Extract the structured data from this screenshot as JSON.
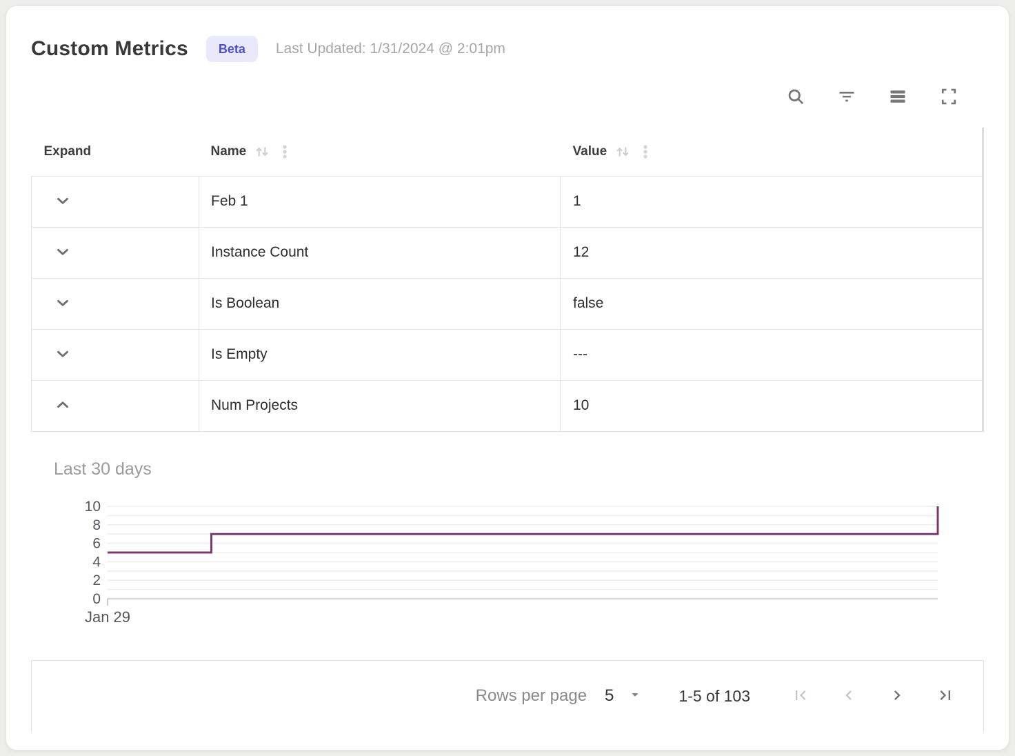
{
  "header": {
    "title": "Custom Metrics",
    "badge": "Beta",
    "last_updated": "Last Updated: 1/31/2024 @ 2:01pm"
  },
  "toolbar": {
    "icons": [
      "search-icon",
      "filter-icon",
      "density-icon",
      "fullscreen-icon"
    ]
  },
  "table": {
    "columns": [
      {
        "label": "Expand",
        "sortable": false
      },
      {
        "label": "Name",
        "sortable": true
      },
      {
        "label": "Value",
        "sortable": true
      }
    ],
    "rows": [
      {
        "name": "Feb 1",
        "value": "1",
        "expanded": false
      },
      {
        "name": "Instance Count",
        "value": "12",
        "expanded": false
      },
      {
        "name": "Is Boolean",
        "value": "false",
        "expanded": false
      },
      {
        "name": "Is Empty",
        "value": "---",
        "expanded": false
      },
      {
        "name": "Num Projects",
        "value": "10",
        "expanded": true
      }
    ]
  },
  "chart_data": {
    "type": "line",
    "step": "after",
    "title": "Last 30 days",
    "xlabel": "",
    "ylabel": "",
    "ylim": [
      0,
      10
    ],
    "y_ticks": [
      0,
      2,
      4,
      6,
      8,
      10
    ],
    "grid": true,
    "x_axis": {
      "start_label": "Jan 29",
      "range_days": 30
    },
    "series": [
      {
        "name": "Num Projects",
        "color": "#7d3a70",
        "points": [
          {
            "day": 0,
            "value": 5
          },
          {
            "day": 3.75,
            "value": 7
          },
          {
            "day": 30,
            "value": 10
          }
        ]
      }
    ]
  },
  "pagination": {
    "rows_per_page_label": "Rows per page",
    "rows_per_page_value": "5",
    "range_label": "1-5 of 103",
    "first_disabled": true,
    "prev_disabled": true,
    "next_disabled": false,
    "last_disabled": false
  },
  "colors": {
    "accent": "#4b50c8",
    "badge_bg": "#e9e9fb",
    "line": "#7d3a70",
    "grid_line": "#efefef",
    "axis_line": "#d9d9d9",
    "muted_text": "#a6a6a6"
  }
}
